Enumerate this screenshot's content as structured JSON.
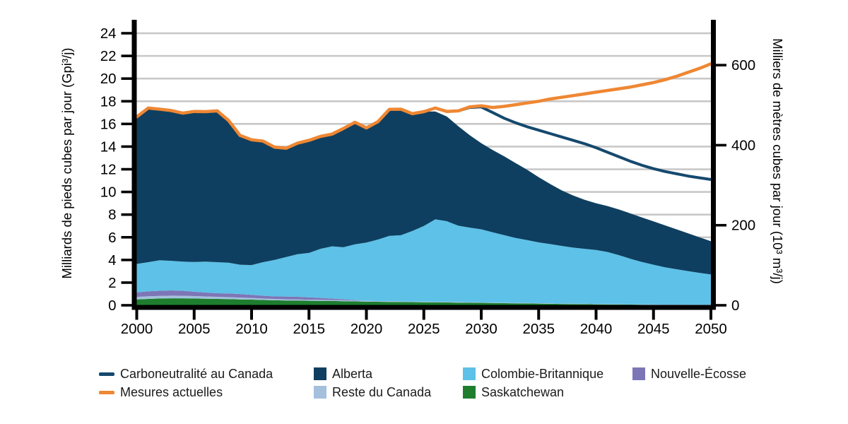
{
  "chart_data": {
    "type": "area",
    "title": "",
    "x_label": "",
    "years_start": 2000,
    "years_end": 2050,
    "x_ticks": [
      2000,
      2005,
      2010,
      2015,
      2020,
      2025,
      2030,
      2035,
      2040,
      2045,
      2050
    ],
    "left_axis": {
      "label": "Milliards de pieds cubes par jour (Gpi³/j)",
      "ticks": [
        0,
        2,
        4,
        6,
        8,
        10,
        12,
        14,
        16,
        18,
        20,
        22,
        24
      ],
      "max_units": 25.2
    },
    "right_axis": {
      "label": "Milliers de mètres cubes par jour (10³ m³/j)",
      "ticks": [
        0,
        200,
        400,
        600
      ],
      "conversion_factor": 28.32
    },
    "grid": true,
    "legend_position": "bottom",
    "stacked_series": [
      {
        "id": "saskatchewan",
        "name": "Saskatchewan",
        "color": "#1e7e2e",
        "values": [
          0.52,
          0.56,
          0.6,
          0.62,
          0.62,
          0.6,
          0.58,
          0.56,
          0.54,
          0.52,
          0.5,
          0.47,
          0.44,
          0.42,
          0.42,
          0.4,
          0.39,
          0.38,
          0.36,
          0.34,
          0.32,
          0.31,
          0.3,
          0.29,
          0.28,
          0.27,
          0.26,
          0.25,
          0.24,
          0.23,
          0.22,
          0.2,
          0.19,
          0.17,
          0.16,
          0.15,
          0.13,
          0.12,
          0.11,
          0.1,
          0.09,
          0.08,
          0.07,
          0.06,
          0.05,
          0.04,
          0.03,
          0.03,
          0.02,
          0.02,
          0.02
        ]
      },
      {
        "id": "reste-du-canada",
        "name": "Reste du Canada",
        "color": "#a4c0dc",
        "values": [
          0.22,
          0.23,
          0.23,
          0.23,
          0.22,
          0.21,
          0.2,
          0.19,
          0.18,
          0.16,
          0.15,
          0.13,
          0.12,
          0.11,
          0.1,
          0.09,
          0.09,
          0.08,
          0.08,
          0.07,
          0.07,
          0.06,
          0.06,
          0.06,
          0.05,
          0.05,
          0.05,
          0.05,
          0.05,
          0.05,
          0.05,
          0.04,
          0.04,
          0.04,
          0.04,
          0.04,
          0.04,
          0.03,
          0.03,
          0.03,
          0.03,
          0.03,
          0.03,
          0.03,
          0.03,
          0.03,
          0.03,
          0.03,
          0.03,
          0.03,
          0.03
        ]
      },
      {
        "id": "nouvelle-ecosse",
        "name": "Nouvelle-Écosse",
        "color": "#7d76b6",
        "values": [
          0.4,
          0.44,
          0.45,
          0.46,
          0.44,
          0.38,
          0.34,
          0.31,
          0.32,
          0.31,
          0.27,
          0.24,
          0.22,
          0.24,
          0.23,
          0.21,
          0.17,
          0.13,
          0.09,
          0.05,
          0.01,
          0,
          0,
          0,
          0,
          0,
          0,
          0,
          0,
          0,
          0,
          0,
          0,
          0,
          0,
          0,
          0,
          0,
          0,
          0,
          0,
          0,
          0,
          0,
          0,
          0,
          0,
          0,
          0,
          0,
          0
        ]
      },
      {
        "id": "colombie-britannique",
        "name": "Colombie-Britannique",
        "color": "#5ec1e7",
        "values": [
          2.51,
          2.57,
          2.69,
          2.61,
          2.57,
          2.63,
          2.73,
          2.74,
          2.72,
          2.59,
          2.63,
          2.96,
          3.22,
          3.48,
          3.75,
          3.92,
          4.33,
          4.61,
          4.59,
          4.92,
          5.13,
          5.43,
          5.76,
          5.83,
          6.22,
          6.68,
          7.27,
          7.12,
          6.73,
          6.57,
          6.43,
          6.2,
          5.96,
          5.73,
          5.55,
          5.36,
          5.23,
          5.09,
          4.95,
          4.85,
          4.76,
          4.59,
          4.32,
          4.01,
          3.74,
          3.51,
          3.29,
          3.12,
          2.97,
          2.81,
          2.67
        ]
      },
      {
        "id": "alberta",
        "name": "Alberta",
        "color": "#0e3f60",
        "values": [
          12.97,
          13.6,
          13.33,
          13.26,
          13.1,
          13.28,
          13.23,
          13.35,
          12.54,
          11.4,
          11.05,
          10.68,
          9.95,
          9.6,
          9.8,
          9.93,
          9.92,
          9.9,
          10.48,
          10.77,
          10.12,
          10.4,
          11.16,
          11.12,
          10.35,
          10.08,
          9.52,
          9.23,
          8.78,
          8.15,
          7.6,
          7.25,
          6.95,
          6.6,
          6.2,
          5.75,
          5.3,
          4.9,
          4.6,
          4.32,
          4.12,
          4.05,
          4.03,
          4.0,
          3.93,
          3.82,
          3.7,
          3.52,
          3.33,
          3.14,
          2.93
        ]
      }
    ],
    "line_series": [
      {
        "id": "carboneutralite-au-canada",
        "name": "Carboneutralité au Canada",
        "color": "#15496e",
        "width": 4,
        "values": [
          16.62,
          17.4,
          17.3,
          17.18,
          16.95,
          17.1,
          17.08,
          17.15,
          16.3,
          14.98,
          14.6,
          14.48,
          13.95,
          13.85,
          14.3,
          14.55,
          14.9,
          15.1,
          15.6,
          16.15,
          15.65,
          16.2,
          17.28,
          17.3,
          16.9,
          17.08,
          17.4,
          17.1,
          17.15,
          17.45,
          17.5,
          17.0,
          16.5,
          16.1,
          15.75,
          15.45,
          15.15,
          14.85,
          14.55,
          14.25,
          13.9,
          13.5,
          13.1,
          12.7,
          12.35,
          12.05,
          11.8,
          11.6,
          11.4,
          11.25,
          11.1
        ]
      },
      {
        "id": "mesures-actuelles",
        "name": "Mesures actuelles",
        "color": "#ef8733",
        "width": 4.5,
        "values": [
          16.62,
          17.4,
          17.3,
          17.18,
          16.95,
          17.1,
          17.08,
          17.15,
          16.3,
          14.98,
          14.6,
          14.48,
          13.95,
          13.85,
          14.3,
          14.55,
          14.9,
          15.1,
          15.6,
          16.15,
          15.65,
          16.2,
          17.28,
          17.3,
          16.9,
          17.08,
          17.4,
          17.1,
          17.15,
          17.5,
          17.6,
          17.45,
          17.55,
          17.7,
          17.85,
          18.0,
          18.2,
          18.35,
          18.5,
          18.65,
          18.8,
          18.95,
          19.1,
          19.25,
          19.45,
          19.65,
          19.9,
          20.2,
          20.55,
          20.9,
          21.3
        ]
      }
    ],
    "legend": [
      {
        "id": "carboneutralite-au-canada",
        "label": "Carboneutralité au Canada",
        "swatch": "line",
        "color": "#15496e",
        "row": 0,
        "col": 0
      },
      {
        "id": "mesures-actuelles",
        "label": "Mesures actuelles",
        "swatch": "line",
        "color": "#ef8733",
        "row": 1,
        "col": 0
      },
      {
        "id": "alberta",
        "label": "Alberta",
        "swatch": "square",
        "color": "#0e3f60",
        "row": 0,
        "col": 1
      },
      {
        "id": "reste-du-canada",
        "label": "Reste du Canada",
        "swatch": "square",
        "color": "#a4c0dc",
        "row": 1,
        "col": 1
      },
      {
        "id": "colombie-britannique",
        "label": "Colombie-Britannique",
        "swatch": "square",
        "color": "#5ec1e7",
        "row": 0,
        "col": 2
      },
      {
        "id": "saskatchewan",
        "label": "Saskatchewan",
        "swatch": "square",
        "color": "#1e7e2e",
        "row": 1,
        "col": 2
      },
      {
        "id": "nouvelle-ecosse",
        "label": "Nouvelle-Écosse",
        "swatch": "square",
        "color": "#7d76b6",
        "row": 0,
        "col": 3
      }
    ],
    "colors": {
      "grid": "#c8c8c8",
      "axis": "#000000",
      "tick_text": "#000000"
    }
  }
}
